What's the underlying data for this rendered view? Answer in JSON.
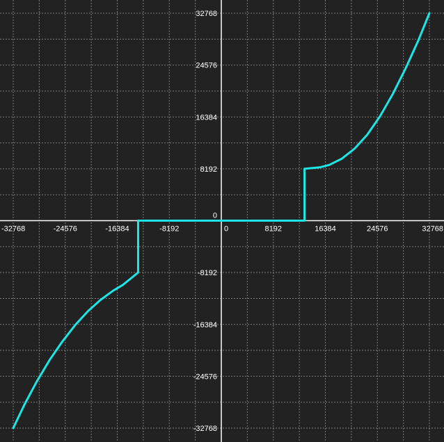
{
  "chart_data": {
    "type": "line",
    "title": "",
    "xlabel": "",
    "ylabel": "",
    "xlim": [
      -32768,
      32768
    ],
    "ylim": [
      -32768,
      32768
    ],
    "grid": true,
    "x_ticks": [
      -32768,
      -24576,
      -16384,
      -8192,
      0,
      8192,
      16384,
      24576,
      32768
    ],
    "y_ticks": [
      -32768,
      -24576,
      -16384,
      -8192,
      0,
      8192,
      16384,
      24576,
      32768
    ],
    "x_tick_labels": [
      "-32768",
      "-24576",
      "-16384",
      "-8192",
      "0",
      "8192",
      "16384",
      "24576",
      "32768"
    ],
    "y_tick_labels": [
      "-32768",
      "-24576",
      "-16384",
      "-8192",
      "0",
      "8192",
      "16384",
      "24576",
      "32768"
    ],
    "series": [
      {
        "color": "#1de6e6",
        "x": [
          -32768,
          -31000,
          -29000,
          -27000,
          -25000,
          -23000,
          -21000,
          -19000,
          -17000,
          -15500,
          -13100,
          -13100,
          13100,
          13100,
          15500,
          17000,
          19000,
          21000,
          23000,
          25000,
          27000,
          29000,
          31000,
          32768
        ],
        "y": [
          -32768,
          -29050,
          -25300,
          -21950,
          -19050,
          -16480,
          -14300,
          -12500,
          -11040,
          -10150,
          -8192,
          0,
          0,
          8192,
          8420,
          8800,
          9800,
          11390,
          13600,
          16500,
          20000,
          24000,
          28400,
          32768
        ]
      }
    ]
  },
  "colors": {
    "background": "#222222",
    "grid": "#9a9a9a",
    "axis": "#ffffff",
    "line": "#1de6e6"
  }
}
